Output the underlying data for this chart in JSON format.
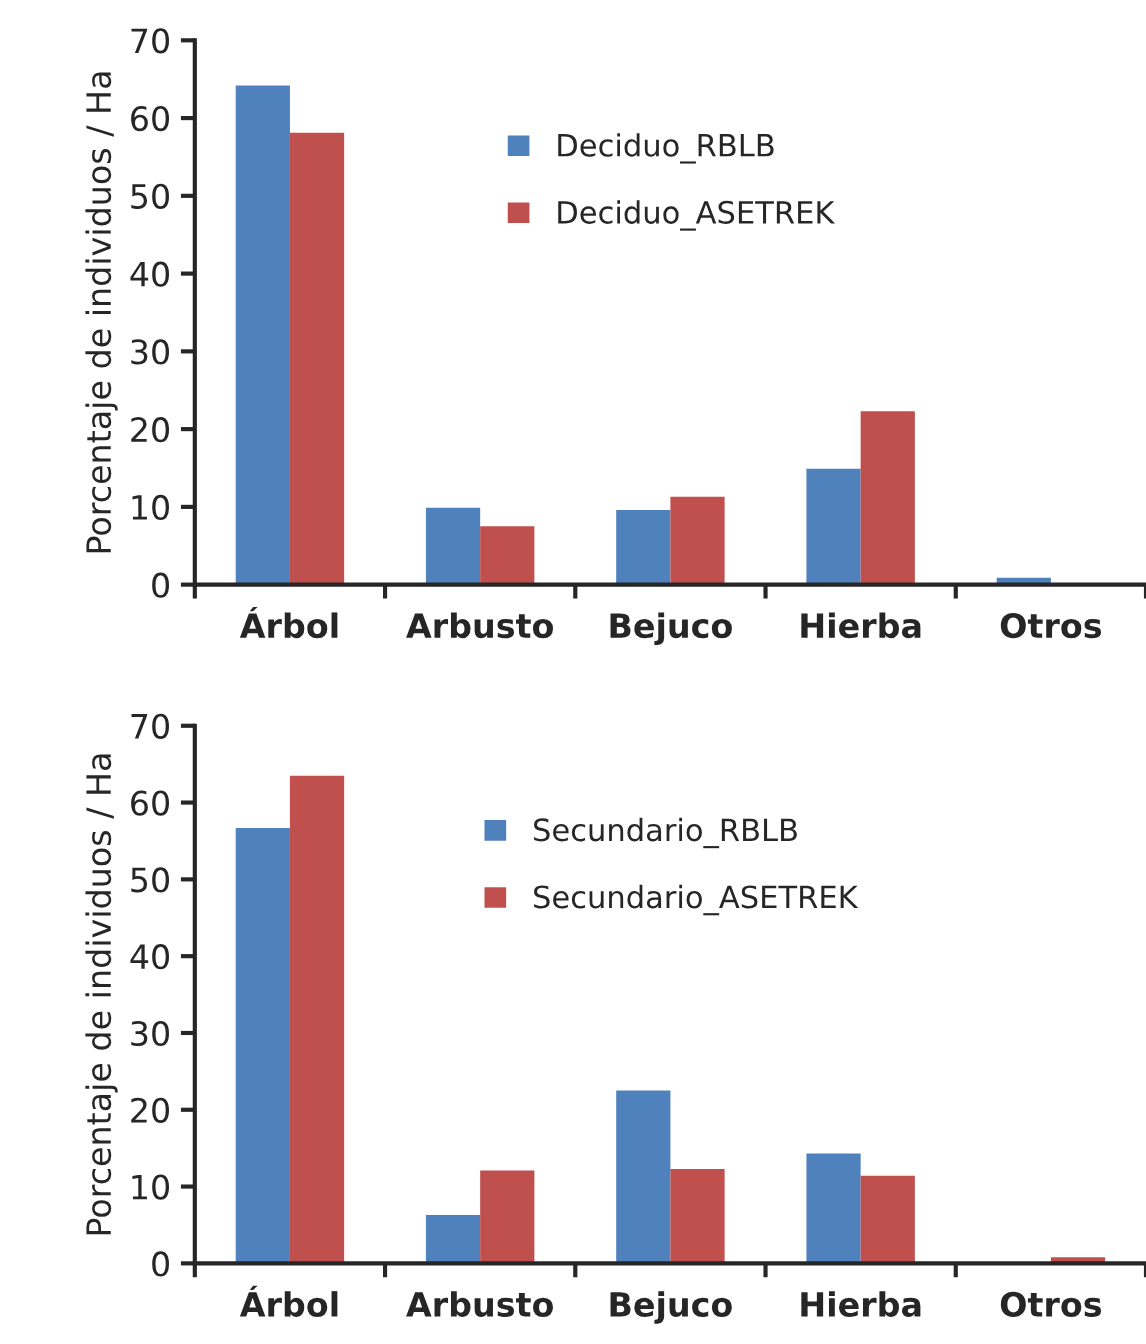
{
  "chart_data": [
    {
      "type": "bar",
      "ylabel": "Porcentaje de individuos / Ha",
      "categories": [
        "Árbol",
        "Arbusto",
        "Bejuco",
        "Hierba",
        "Otros"
      ],
      "ylim": [
        0,
        70
      ],
      "yticks": [
        0,
        10,
        20,
        30,
        40,
        50,
        60,
        70
      ],
      "legend": "top",
      "grid": false,
      "series": [
        {
          "name": "Deciduo_RBLB",
          "color": "#4f81bd",
          "values": [
            64.2,
            9.9,
            9.6,
            14.9,
            0.9
          ]
        },
        {
          "name": "Deciduo_ASETREK",
          "color": "#c0504d",
          "values": [
            58.1,
            7.5,
            11.3,
            22.3,
            null
          ]
        }
      ]
    },
    {
      "type": "bar",
      "ylabel": "Porcentaje de individuos / Ha",
      "categories": [
        "Árbol",
        "Arbusto",
        "Bejuco",
        "Hierba",
        "Otros"
      ],
      "ylim": [
        0,
        70
      ],
      "yticks": [
        0,
        10,
        20,
        30,
        40,
        50,
        60,
        70
      ],
      "legend": "top",
      "grid": false,
      "series": [
        {
          "name": "Secundario_RBLB",
          "color": "#4f81bd",
          "values": [
            56.7,
            6.3,
            22.5,
            14.3,
            null
          ]
        },
        {
          "name": "Secundario_ASETREK",
          "color": "#c0504d",
          "values": [
            63.5,
            12.1,
            12.3,
            11.4,
            0.8
          ]
        }
      ]
    }
  ]
}
